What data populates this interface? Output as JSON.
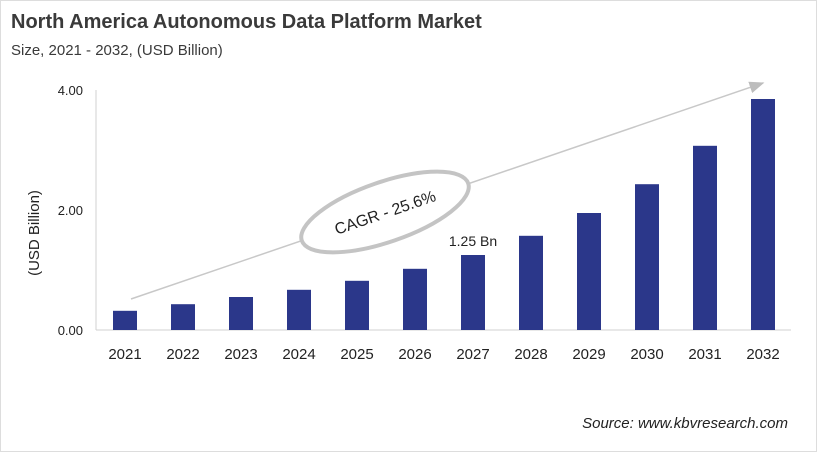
{
  "title": "North America Autonomous Data Platform Market",
  "subtitle": "Size, 2021 - 2032, (USD Billion)",
  "source": "Source: www.kbvresearch.com",
  "chart_data": {
    "type": "bar",
    "categories": [
      "2021",
      "2022",
      "2023",
      "2024",
      "2025",
      "2026",
      "2027",
      "2028",
      "2029",
      "2030",
      "2031",
      "2032"
    ],
    "values": [
      0.32,
      0.43,
      0.55,
      0.67,
      0.82,
      1.02,
      1.25,
      1.57,
      1.95,
      2.43,
      3.07,
      3.85
    ],
    "ylabel": "(USD Billion)",
    "ylim": [
      0,
      4
    ],
    "yticks": [
      "0.00",
      "2.00",
      "4.00"
    ],
    "data_label": {
      "category": "2027",
      "text": "1.25 Bn"
    },
    "annotation": "CAGR - 25.6%",
    "bar_color": "#2b378a",
    "grid": false
  }
}
